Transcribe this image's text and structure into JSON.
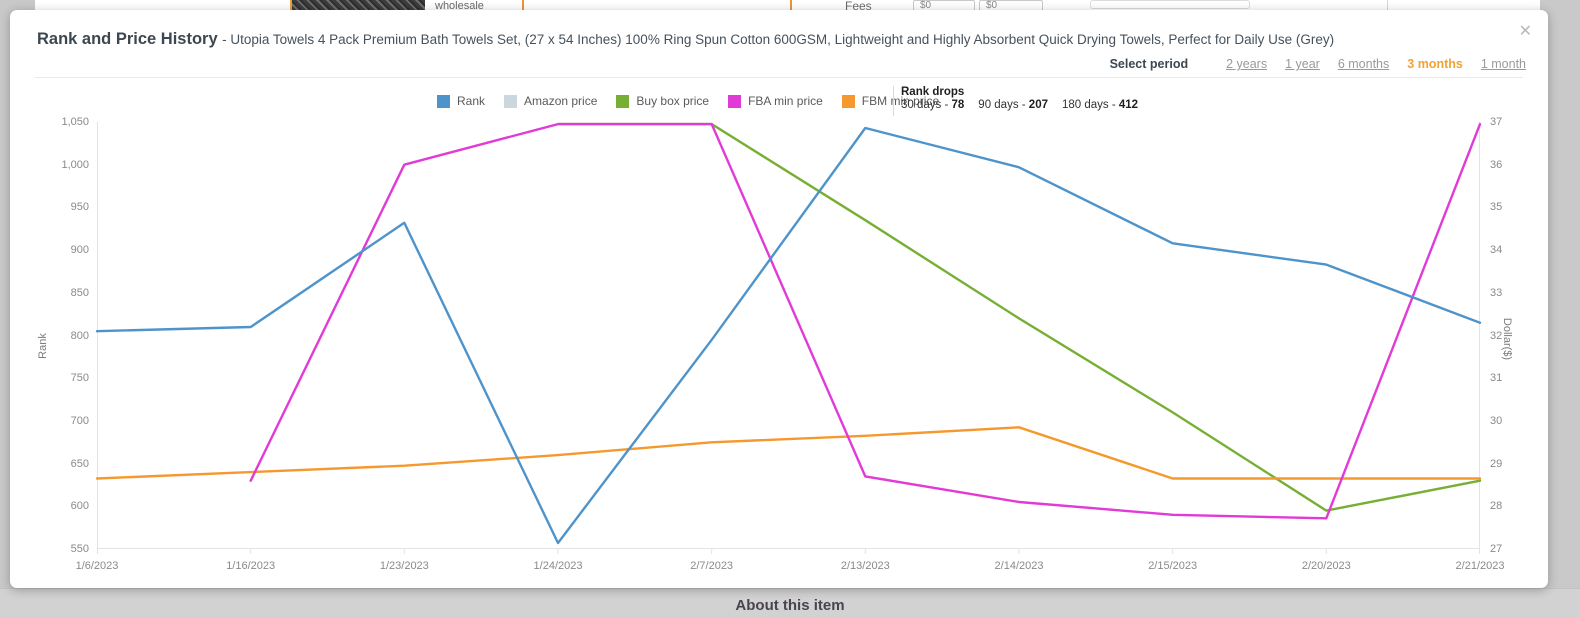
{
  "background": {
    "top_strip": {
      "wholesale_text": "wholesale",
      "fees_label": "Fees",
      "fee_value_1": "$0",
      "fee_value_2": "$0"
    },
    "bottom_heading": "About this item"
  },
  "modal": {
    "title": "Rank and Price History",
    "subtitle": "- Utopia Towels 4 Pack Premium Bath Towels Set, (27 x 54 Inches) 100% Ring Spun Cotton 600GSM, Lightweight and Highly Absorbent Quick Drying Towels, Perfect for Daily Use (Grey)",
    "close_glyph": "✕",
    "period": {
      "label": "Select period",
      "options": [
        {
          "label": "2 years",
          "active": false
        },
        {
          "label": "1 year",
          "active": false
        },
        {
          "label": "6 months",
          "active": false
        },
        {
          "label": "3 months",
          "active": true
        },
        {
          "label": "1 month",
          "active": false
        }
      ],
      "active_color": "#f0a233"
    },
    "rank_drops": {
      "title": "Rank drops",
      "items": [
        {
          "label": "30 days",
          "value": "78"
        },
        {
          "label": "90 days",
          "value": "207"
        },
        {
          "label": "180 days",
          "value": "412"
        }
      ]
    }
  },
  "chart_data": {
    "type": "line",
    "title": "Rank and Price History",
    "x_categories": [
      "1/6/2023",
      "1/16/2023",
      "1/23/2023",
      "1/24/2023",
      "2/7/2023",
      "2/13/2023",
      "2/14/2023",
      "2/15/2023",
      "2/20/2023",
      "2/21/2023"
    ],
    "y_left": {
      "title": "Rank",
      "min": 550,
      "max": 1050,
      "tick_step": 50
    },
    "y_right": {
      "title": "Dollar($)",
      "min": 27,
      "max": 37,
      "tick_step": 1
    },
    "grid": false,
    "legend_position": "top",
    "axis_line_color": "#e3e3e3",
    "series": [
      {
        "name": "Rank",
        "axis": "left",
        "color": "#4e94cb",
        "z": 5,
        "values": [
          805,
          810,
          932,
          557,
          795,
          1043,
          997,
          908,
          883,
          815
        ]
      },
      {
        "name": "Amazon price",
        "axis": "right",
        "color": "#ccd6dd",
        "z": 1,
        "values": [
          null,
          null,
          null,
          null,
          null,
          null,
          null,
          null,
          null,
          null
        ]
      },
      {
        "name": "Buy box price",
        "axis": "right",
        "color": "#76af33",
        "z": 2,
        "values": [
          null,
          null,
          null,
          36.95,
          36.95,
          34.7,
          32.4,
          30.2,
          27.9,
          28.6
        ]
      },
      {
        "name": "FBA min price",
        "axis": "right",
        "color": "#e23ad6",
        "z": 4,
        "values": [
          null,
          28.6,
          36.0,
          36.95,
          36.95,
          28.7,
          28.1,
          27.8,
          27.72,
          36.95
        ]
      },
      {
        "name": "FBM min price",
        "axis": "right",
        "color": "#f5992e",
        "z": 3,
        "values": [
          28.65,
          28.8,
          28.95,
          29.2,
          29.5,
          29.65,
          29.85,
          28.65,
          28.65,
          28.65
        ]
      }
    ]
  }
}
